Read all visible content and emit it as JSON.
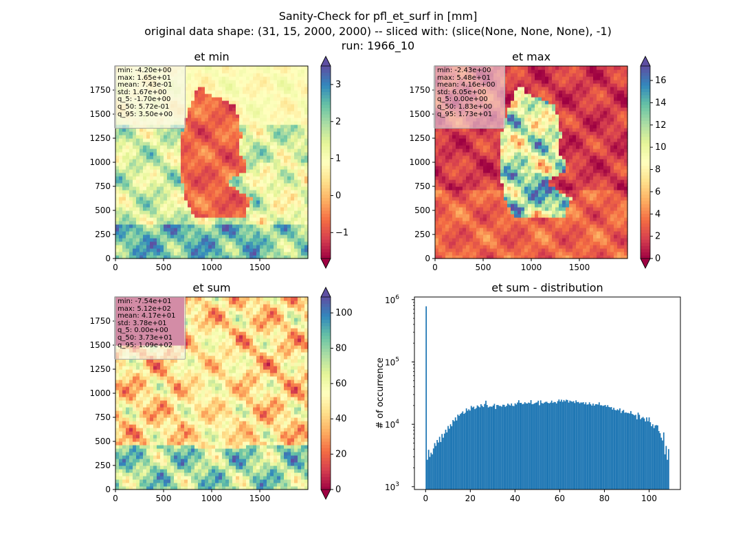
{
  "figure": {
    "suptitle_lines": [
      "Sanity-Check for pfl_et_surf in [mm]",
      "original data shape: (31, 15, 2000, 2000) -- sliced with: (slice(None, None, None), -1)",
      "run: 1966_10"
    ]
  },
  "chart_data": [
    {
      "type": "heatmap",
      "title": "et min",
      "xlim": [
        0,
        2000
      ],
      "ylim": [
        0,
        2000
      ],
      "xticks": [
        0,
        500,
        1000,
        1500
      ],
      "yticks": [
        0,
        250,
        500,
        750,
        1000,
        1250,
        1500,
        1750
      ],
      "colormap": "Spectral",
      "colorbar": {
        "range": [
          -1.7,
          3.5
        ],
        "ticks": [
          -1,
          0,
          1,
          2,
          3
        ],
        "extend": "both"
      },
      "stats": [
        "min: -4.20e+00",
        "max: 1.65e+01",
        "mean: 7.43e-01",
        "std: 1.67e+00",
        "q_5: -1.70e+00",
        "q_50: 5.72e-01",
        "q_95: 3.50e+00"
      ]
    },
    {
      "type": "heatmap",
      "title": "et max",
      "xlim": [
        0,
        2000
      ],
      "ylim": [
        0,
        2000
      ],
      "xticks": [
        0,
        500,
        1000,
        1500
      ],
      "yticks": [
        0,
        250,
        500,
        750,
        1000,
        1250,
        1500,
        1750
      ],
      "colormap": "Spectral",
      "colorbar": {
        "range": [
          0,
          17.3
        ],
        "ticks": [
          0,
          2,
          4,
          6,
          8,
          10,
          12,
          14,
          16
        ],
        "extend": "both"
      },
      "stats": [
        "min: -2.43e+00",
        "max: 5.48e+01",
        "mean: 4.16e+00",
        "std: 6.05e+00",
        "q_5: 0.00e+00",
        "q_50: 1.83e+00",
        "q_95: 1.73e+01"
      ]
    },
    {
      "type": "heatmap",
      "title": "et sum",
      "xlim": [
        0,
        2000
      ],
      "ylim": [
        0,
        2000
      ],
      "xticks": [
        0,
        500,
        1000,
        1500
      ],
      "yticks": [
        0,
        250,
        500,
        750,
        1000,
        1250,
        1500,
        1750
      ],
      "colormap": "Spectral",
      "colorbar": {
        "range": [
          0,
          109
        ],
        "ticks": [
          0,
          20,
          40,
          60,
          80,
          100
        ],
        "extend": "both"
      },
      "stats": [
        "min: -7.54e+01",
        "max: 5.12e+02",
        "mean: 4.17e+01",
        "std: 3.78e+01",
        "q_5: 0.00e+00",
        "q_50: 3.73e+01",
        "q_95: 1.09e+02"
      ]
    },
    {
      "type": "bar",
      "title": "et sum - distribution",
      "xlabel": "",
      "ylabel": "# of occurrence",
      "xlim": [
        -5,
        114
      ],
      "ylim": [
        900,
        1100000
      ],
      "yscale": "log",
      "xticks": [
        0,
        20,
        40,
        60,
        80,
        100
      ],
      "yticks": [
        1000,
        10000,
        100000,
        1000000
      ],
      "ytick_labels": [
        [
          "10",
          "3"
        ],
        [
          "10",
          "4"
        ],
        [
          "10",
          "5"
        ],
        [
          "10",
          "6"
        ]
      ],
      "color": "#1f77b4",
      "bin_width": 0.545,
      "bins_start": 0,
      "values": [
        780000,
        2700,
        3900,
        3000,
        3500,
        3300,
        4100,
        5000,
        4500,
        5600,
        5100,
        6300,
        5200,
        7000,
        6100,
        7100,
        8200,
        7400,
        9400,
        8500,
        10000,
        9300,
        11700,
        11200,
        12900,
        11500,
        14300,
        13700,
        14600,
        15200,
        16100,
        14700,
        15300,
        18000,
        16500,
        17400,
        16600,
        19700,
        18600,
        19200,
        17500,
        18200,
        20100,
        19300,
        18700,
        21000,
        19800,
        18900,
        21200,
        23900,
        20400,
        18600,
        19200,
        19300,
        19100,
        20000,
        21300,
        17600,
        20400,
        20400,
        19700,
        19700,
        19200,
        20600,
        20500,
        19100,
        19800,
        21500,
        20700,
        20000,
        21600,
        19800,
        19600,
        21700,
        20800,
        22300,
        24300,
        22000,
        22100,
        21000,
        21300,
        22600,
        21700,
        21500,
        22300,
        21900,
        24400,
        21000,
        21200,
        21700,
        22200,
        22500,
        23900,
        20200,
        24200,
        21900,
        21500,
        22300,
        22900,
        23000,
        22000,
        21700,
        22300,
        24000,
        22000,
        22800,
        22700,
        21600,
        23500,
        25000,
        23200,
        24800,
        22900,
        24500,
        23400,
        24800,
        24500,
        22300,
        24000,
        23400,
        23000,
        23500,
        21900,
        24200,
        22700,
        22800,
        21700,
        22400,
        22300,
        22600,
        21000,
        22500,
        20700,
        20900,
        22500,
        21000,
        20000,
        21500,
        19900,
        21000,
        21000,
        20700,
        22500,
        20200,
        20200,
        19700,
        20000,
        20400,
        19100,
        20300,
        19000,
        18700,
        18900,
        17200,
        18400,
        17000,
        16700,
        17400,
        16800,
        18000,
        15200,
        16400,
        17000,
        15300,
        15500,
        15200,
        15200,
        14900,
        16300,
        14700,
        14300,
        13900,
        14200,
        12000,
        15400,
        14200,
        12100,
        12700,
        13100,
        12400,
        11100,
        12900,
        11200,
        12900,
        10800,
        9300,
        10000,
        8700,
        9600,
        9700,
        9600,
        7800,
        7200,
        6100,
        5500,
        7400,
        3300,
        4500,
        2700,
        4000
      ]
    }
  ]
}
